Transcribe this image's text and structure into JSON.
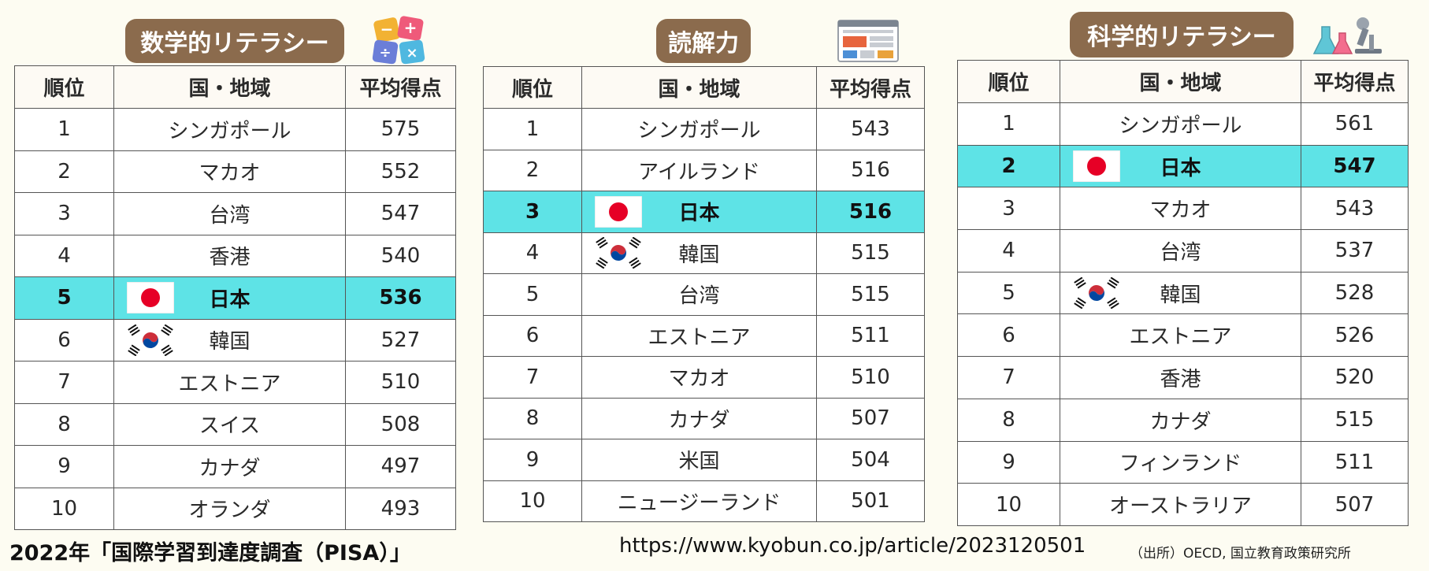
{
  "chart_data": [
    {
      "type": "table",
      "title": "数学的リテラシー",
      "columns": [
        "順位",
        "国・地域",
        "平均得点"
      ],
      "rows": [
        {
          "rank": "1",
          "country": "シンガポール",
          "score": "575",
          "flag": "",
          "highlight": false
        },
        {
          "rank": "2",
          "country": "マカオ",
          "score": "552",
          "flag": "",
          "highlight": false
        },
        {
          "rank": "3",
          "country": "台湾",
          "score": "547",
          "flag": "",
          "highlight": false
        },
        {
          "rank": "4",
          "country": "香港",
          "score": "540",
          "flag": "",
          "highlight": false
        },
        {
          "rank": "5",
          "country": "日本",
          "score": "536",
          "flag": "japan-flag",
          "highlight": true
        },
        {
          "rank": "6",
          "country": "韓国",
          "score": "527",
          "flag": "korea-flag",
          "highlight": false
        },
        {
          "rank": "7",
          "country": "エストニア",
          "score": "510",
          "flag": "",
          "highlight": false
        },
        {
          "rank": "8",
          "country": "スイス",
          "score": "508",
          "flag": "",
          "highlight": false
        },
        {
          "rank": "9",
          "country": "カナダ",
          "score": "497",
          "flag": "",
          "highlight": false
        },
        {
          "rank": "10",
          "country": "オランダ",
          "score": "493",
          "flag": "",
          "highlight": false
        }
      ],
      "icon": "math-symbols-icon"
    },
    {
      "type": "table",
      "title": "読解力",
      "columns": [
        "順位",
        "国・地域",
        "平均得点"
      ],
      "rows": [
        {
          "rank": "1",
          "country": "シンガポール",
          "score": "543",
          "flag": "",
          "highlight": false
        },
        {
          "rank": "2",
          "country": "アイルランド",
          "score": "516",
          "flag": "",
          "highlight": false
        },
        {
          "rank": "3",
          "country": "日本",
          "score": "516",
          "flag": "japan-flag",
          "highlight": true
        },
        {
          "rank": "4",
          "country": "韓国",
          "score": "515",
          "flag": "korea-flag",
          "highlight": false
        },
        {
          "rank": "5",
          "country": "台湾",
          "score": "515",
          "flag": "",
          "highlight": false
        },
        {
          "rank": "6",
          "country": "エストニア",
          "score": "511",
          "flag": "",
          "highlight": false
        },
        {
          "rank": "7",
          "country": "マカオ",
          "score": "510",
          "flag": "",
          "highlight": false
        },
        {
          "rank": "8",
          "country": "カナダ",
          "score": "507",
          "flag": "",
          "highlight": false
        },
        {
          "rank": "9",
          "country": "米国",
          "score": "504",
          "flag": "",
          "highlight": false
        },
        {
          "rank": "10",
          "country": "ニュージーランド",
          "score": "501",
          "flag": "",
          "highlight": false
        }
      ],
      "icon": "news-page-icon"
    },
    {
      "type": "table",
      "title": "科学的リテラシー",
      "columns": [
        "順位",
        "国・地域",
        "平均得点"
      ],
      "rows": [
        {
          "rank": "1",
          "country": "シンガポール",
          "score": "561",
          "flag": "",
          "highlight": false
        },
        {
          "rank": "2",
          "country": "日本",
          "score": "547",
          "flag": "japan-flag",
          "highlight": true
        },
        {
          "rank": "3",
          "country": "マカオ",
          "score": "543",
          "flag": "",
          "highlight": false
        },
        {
          "rank": "4",
          "country": "台湾",
          "score": "537",
          "flag": "",
          "highlight": false
        },
        {
          "rank": "5",
          "country": "韓国",
          "score": "528",
          "flag": "korea-flag",
          "highlight": false
        },
        {
          "rank": "6",
          "country": "エストニア",
          "score": "526",
          "flag": "",
          "highlight": false
        },
        {
          "rank": "7",
          "country": "香港",
          "score": "520",
          "flag": "",
          "highlight": false
        },
        {
          "rank": "8",
          "country": "カナダ",
          "score": "515",
          "flag": "",
          "highlight": false
        },
        {
          "rank": "9",
          "country": "フィンランド",
          "score": "511",
          "flag": "",
          "highlight": false
        },
        {
          "rank": "10",
          "country": "オーストラリア",
          "score": "507",
          "flag": "",
          "highlight": false
        }
      ],
      "icon": "lab-flask-microscope-icon"
    }
  ],
  "footer": {
    "survey_title": "2022年「国際学習到達度調査（PISA）」",
    "url": "https://www.kyobun.co.jp/article/2023120501",
    "source": "（出所）OECD, 国立教育政策研究所"
  },
  "colors": {
    "badge": "#8b6b4d",
    "highlight_row": "#5ee3e6",
    "background": "#fdfcf2"
  }
}
